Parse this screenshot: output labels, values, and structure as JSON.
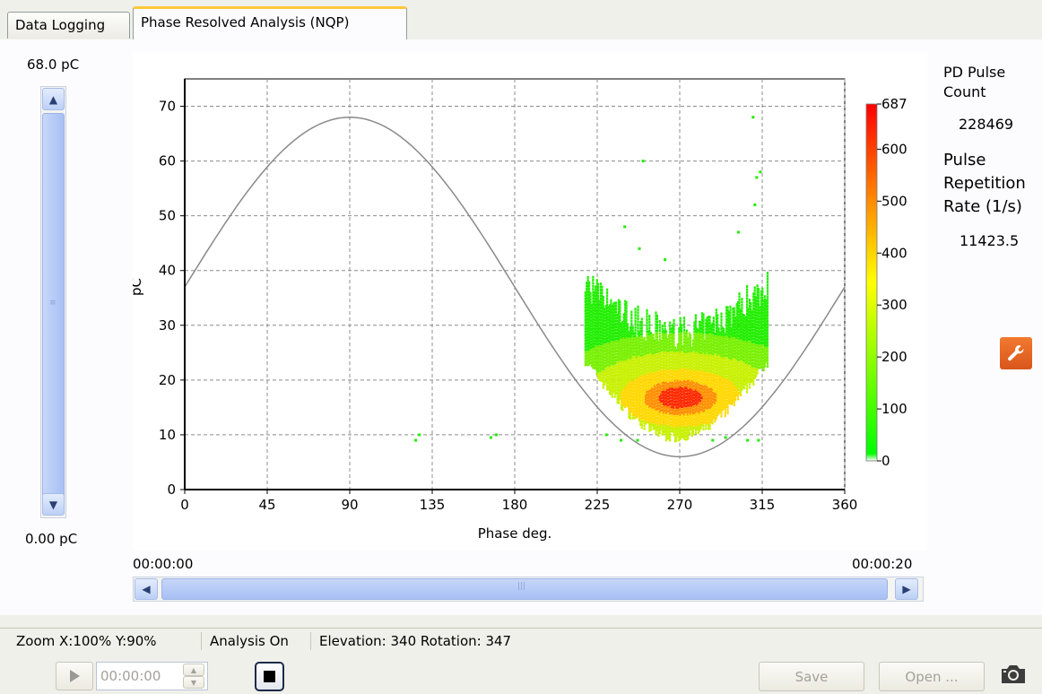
{
  "tabs": [
    {
      "label": "Data Logging",
      "active": false
    },
    {
      "label": "Phase Resolved Analysis (NQP)",
      "active": true
    }
  ],
  "vertical_range": {
    "max_label": "68.0 pC",
    "min_label": "0.00 pC"
  },
  "time_range": {
    "start": "00:00:00",
    "end": "00:00:20"
  },
  "right_panel": {
    "pulse_count_label": "PD Pulse Count",
    "pulse_count_value": "228469",
    "repetition_rate_label": "Pulse Repetition Rate (1/s)",
    "repetition_rate_value": "11423.5",
    "settings_icon": "wrench-icon"
  },
  "status_bar": {
    "zoom": "Zoom X:100% Y:90%",
    "analysis": "Analysis On",
    "view": "Elevation: 340 Rotation: 347"
  },
  "controls": {
    "play_icon": "play-icon",
    "time_value": "00:00:00",
    "stop_icon": "stop-icon",
    "save_label": "Save",
    "open_label": "Open ...",
    "camera_icon": "camera-icon"
  },
  "chart_data": {
    "type": "scatter",
    "xlabel": "Phase deg.",
    "ylabel": "pC",
    "xlim": [
      0,
      360
    ],
    "ylim": [
      0,
      75
    ],
    "xticks": [
      0,
      45,
      90,
      135,
      180,
      225,
      270,
      315,
      360
    ],
    "yticks": [
      0,
      10,
      20,
      30,
      40,
      50,
      60,
      70
    ],
    "grid": true,
    "reference_sine": {
      "amplitude": 31,
      "offset": 37,
      "peak_phase": 90,
      "peak": 68,
      "trough": 6
    },
    "colorbar": {
      "min": 0,
      "max": 687,
      "ticks": [
        0,
        100,
        200,
        300,
        400,
        500,
        600,
        687
      ],
      "colors": [
        "#ffffff",
        "#00ff00",
        "#ffff00",
        "#ff0000"
      ]
    },
    "density_cluster": {
      "x_range": [
        218,
        318
      ],
      "y_range": [
        8,
        46
      ],
      "core": {
        "x_range": [
          255,
          285
        ],
        "y": 17,
        "count": 687
      }
    },
    "outliers": [
      {
        "x": 126,
        "y": 9
      },
      {
        "x": 128,
        "y": 10
      },
      {
        "x": 167,
        "y": 9.5
      },
      {
        "x": 170,
        "y": 10
      },
      {
        "x": 250,
        "y": 60
      },
      {
        "x": 240,
        "y": 48
      },
      {
        "x": 310,
        "y": 68
      },
      {
        "x": 312,
        "y": 57
      },
      {
        "x": 314,
        "y": 58
      },
      {
        "x": 311,
        "y": 52
      },
      {
        "x": 248,
        "y": 44
      },
      {
        "x": 302,
        "y": 47
      },
      {
        "x": 230,
        "y": 10
      },
      {
        "x": 238,
        "y": 9
      },
      {
        "x": 247,
        "y": 9
      },
      {
        "x": 288,
        "y": 9
      },
      {
        "x": 295,
        "y": 9.5
      },
      {
        "x": 307,
        "y": 9
      },
      {
        "x": 313,
        "y": 9
      },
      {
        "x": 262,
        "y": 42
      }
    ]
  }
}
